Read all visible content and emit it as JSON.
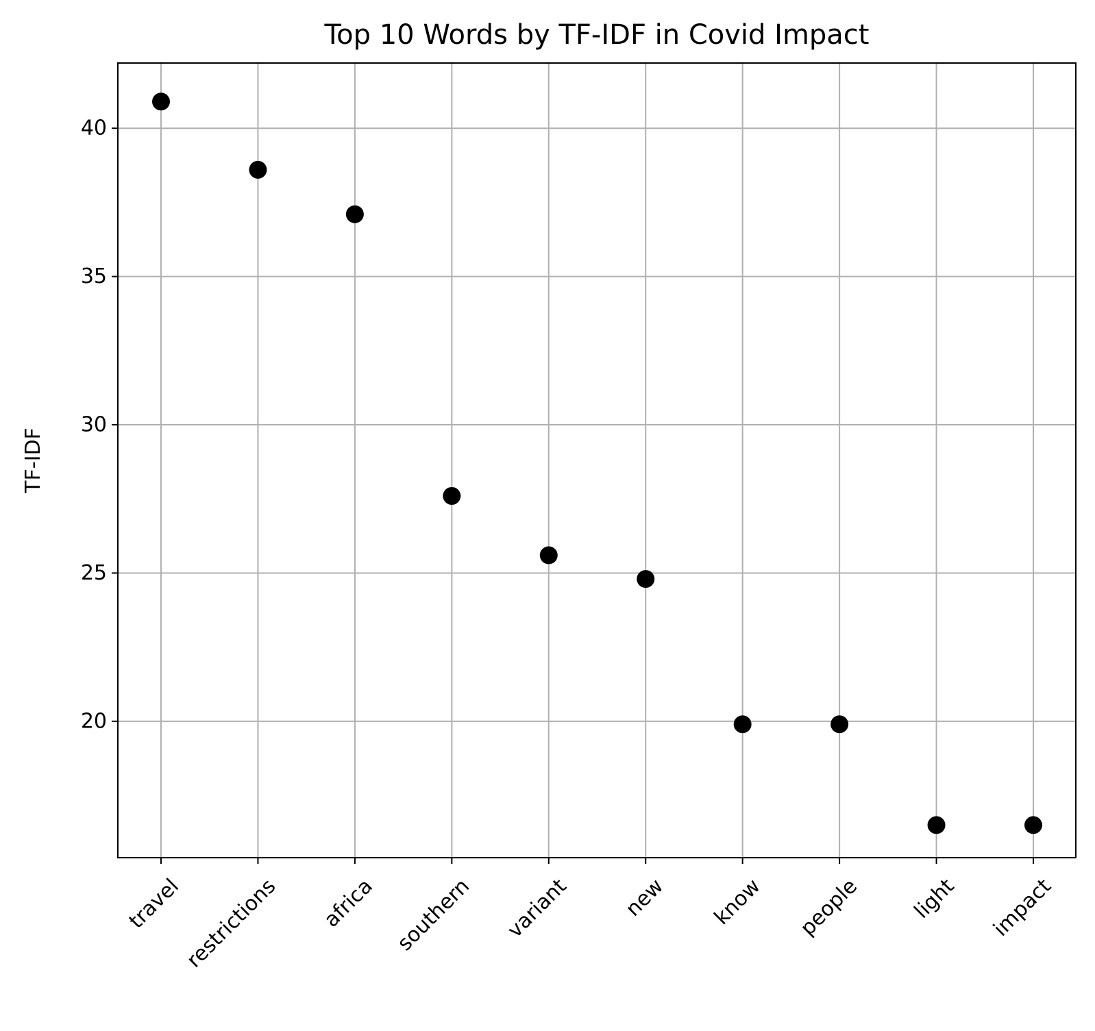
{
  "chart_data": {
    "type": "scatter",
    "title": "Top 10 Words by TF-IDF in Covid Impact",
    "xlabel": "",
    "ylabel": "TF-IDF",
    "categories": [
      "travel",
      "restrictions",
      "africa",
      "southern",
      "variant",
      "new",
      "know",
      "people",
      "light",
      "impact"
    ],
    "series": [
      {
        "values": [
          40.9,
          38.6,
          37.1,
          27.6,
          25.6,
          24.8,
          19.9,
          19.9,
          16.5,
          16.5
        ]
      }
    ],
    "ylim": [
      15.4,
      42.2
    ],
    "yticks": [
      20,
      25,
      30,
      35,
      40
    ],
    "grid": true,
    "marker_color": "#000000",
    "grid_color": "#b0b0b0"
  }
}
